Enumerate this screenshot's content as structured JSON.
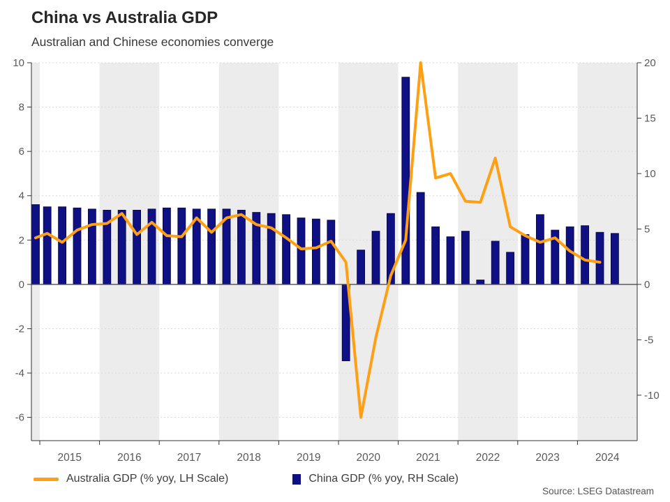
{
  "header": {
    "title": "China vs Australia GDP",
    "subtitle": "Australian and Chinese economies converge"
  },
  "source": "Source: LSEG Datastream",
  "legend": [
    {
      "label": "Australia GDP (% yoy, LH Scale)",
      "swatch": "line",
      "color": "#FFA014"
    },
    {
      "label": "China GDP (% yoy, RH Scale)",
      "swatch": "square",
      "color": "#0F1083"
    }
  ],
  "chart_data": {
    "type": "bar+line dual-axis",
    "title": "China vs Australia GDP",
    "subtitle": "Australian and Chinese economies converge",
    "x_year_labels": [
      "2015",
      "2016",
      "2017",
      "2018",
      "2019",
      "2020",
      "2021",
      "2022",
      "2023",
      "2024"
    ],
    "quarters": [
      "2014 Q4",
      "2015 Q1",
      "2015 Q2",
      "2015 Q3",
      "2015 Q4",
      "2016 Q1",
      "2016 Q2",
      "2016 Q3",
      "2016 Q4",
      "2017 Q1",
      "2017 Q2",
      "2017 Q3",
      "2017 Q4",
      "2018 Q1",
      "2018 Q2",
      "2018 Q3",
      "2018 Q4",
      "2019 Q1",
      "2019 Q2",
      "2019 Q3",
      "2019 Q4",
      "2020 Q1",
      "2020 Q2",
      "2020 Q3",
      "2020 Q4",
      "2021 Q1",
      "2021 Q2",
      "2021 Q3",
      "2021 Q4",
      "2022 Q1",
      "2022 Q2",
      "2022 Q3",
      "2022 Q4",
      "2023 Q1",
      "2023 Q2",
      "2023 Q3",
      "2023 Q4",
      "2024 Q1",
      "2024 Q2",
      "2024 Q3"
    ],
    "series": [
      {
        "name": "Australia GDP (% yoy, LH Scale)",
        "type": "line",
        "axis": "left",
        "color": "#FFA014",
        "values": [
          2.1,
          2.3,
          1.9,
          2.45,
          2.7,
          2.75,
          3.2,
          2.25,
          2.8,
          2.2,
          2.15,
          3.0,
          2.35,
          3.0,
          3.15,
          2.7,
          2.55,
          2.1,
          1.6,
          1.65,
          1.95,
          1.0,
          -6.0,
          -2.4,
          0.4,
          2.0,
          10.0,
          4.8,
          5.0,
          3.75,
          3.7,
          5.7,
          2.6,
          2.2,
          1.9,
          2.1,
          1.5,
          1.1,
          1.0,
          null
        ]
      },
      {
        "name": "China GDP (% yoy, RH Scale)",
        "type": "bar",
        "axis": "right",
        "color": "#0F1083",
        "values": [
          7.2,
          7.0,
          7.0,
          6.9,
          6.8,
          6.7,
          6.7,
          6.7,
          6.8,
          6.9,
          6.9,
          6.8,
          6.8,
          6.8,
          6.7,
          6.5,
          6.4,
          6.3,
          6.0,
          5.9,
          5.8,
          -6.9,
          3.1,
          4.8,
          6.4,
          18.7,
          8.3,
          5.2,
          4.3,
          4.8,
          0.4,
          3.9,
          2.9,
          4.5,
          6.3,
          4.9,
          5.2,
          5.3,
          4.7,
          4.6
        ]
      }
    ],
    "left_axis": {
      "ticks": [
        10,
        8,
        6,
        4,
        2,
        0,
        -2,
        -4,
        -6
      ],
      "min": -7.05,
      "max": 10
    },
    "right_axis": {
      "ticks": [
        20,
        15,
        10,
        5,
        0,
        -5,
        -10
      ],
      "min": -14.1,
      "max": 20
    },
    "grid": "horizontal dashed gridlines at even left-axis values, solid zero line",
    "legend_position": "bottom",
    "background_bands": {
      "shaded_years": [
        "2014",
        "2016",
        "2018",
        "2020",
        "2022",
        "2024"
      ],
      "color": "#ECECEC"
    }
  }
}
